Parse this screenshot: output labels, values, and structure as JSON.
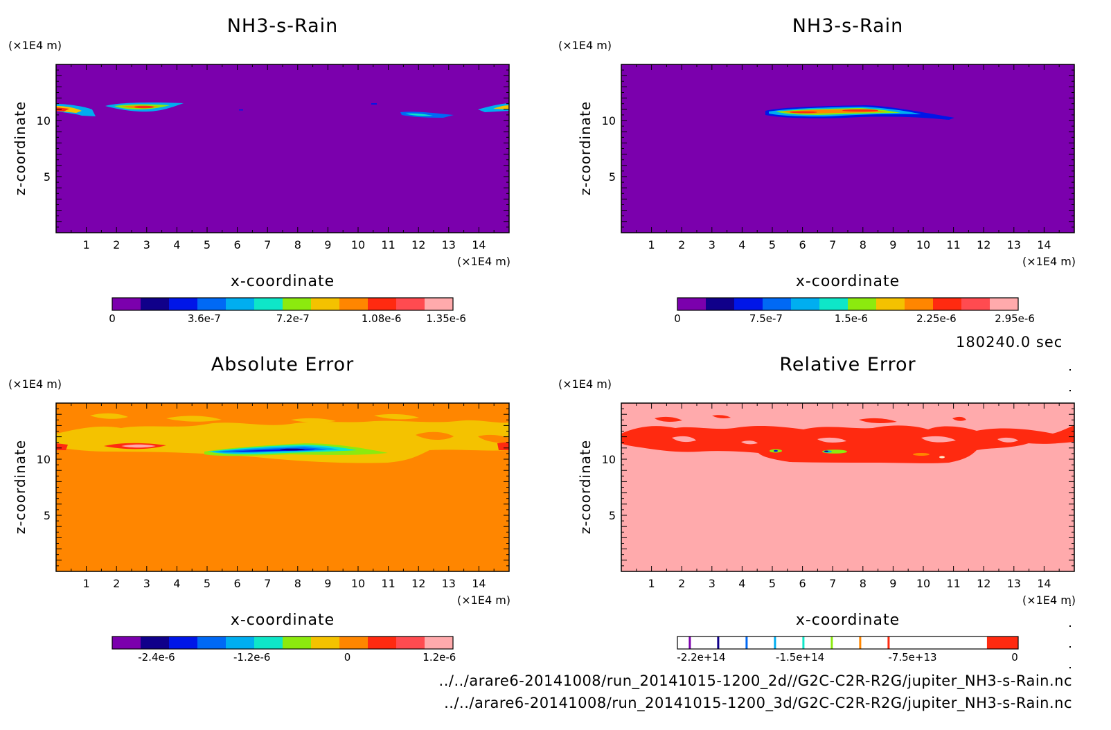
{
  "timestamp": "180240.0 sec",
  "file_paths": [
    "../../arare6-20141008/run_20141015-1200_2d//G2C-C2R-R2G/jupiter_NH3-s-Rain.nc",
    "../../arare6-20141008/run_20141015-1200_3d/G2C-C2R-R2G/jupiter_NH3-s-Rain.nc"
  ],
  "colors": {
    "palette": [
      "#7b00ad",
      "#10008a",
      "#0016e8",
      "#0069f5",
      "#00aef0",
      "#0ee6c8",
      "#8cea0e",
      "#f4c200",
      "#ff8600",
      "#ff2a10",
      "#ff4b50",
      "#ffaaac"
    ]
  },
  "chart_data": [
    {
      "type": "heatmap",
      "title": "NH3-s-Rain",
      "xlabel": "x-coordinate",
      "ylabel": "z-coordinate",
      "x_unit": "(×1E4 m)",
      "y_unit": "(×1E4 m)",
      "xlim": [
        0,
        15
      ],
      "ylim": [
        0,
        15
      ],
      "x_ticks": [
        "1",
        "2",
        "3",
        "4",
        "5",
        "6",
        "7",
        "8",
        "9",
        "10",
        "11",
        "12",
        "13",
        "14"
      ],
      "y_ticks": [
        "5",
        "10"
      ],
      "background_level": 0,
      "features": [
        {
          "x_range": [
            0,
            1.4
          ],
          "z": 11.0,
          "peak": 1.08e-06
        },
        {
          "x_range": [
            1.7,
            4.3
          ],
          "z": 11.2,
          "peak": 1.35e-06
        },
        {
          "x_range": [
            11.5,
            13.0
          ],
          "z": 10.4,
          "peak": 6e-07
        },
        {
          "x_range": [
            14.0,
            15.0
          ],
          "z": 11.0,
          "peak": 1.08e-06
        }
      ],
      "colorbar": {
        "levels": 12,
        "tick_labels": [
          "0",
          "3.6e-7",
          "7.2e-7",
          "1.08e-6",
          "1.35e-6"
        ]
      }
    },
    {
      "type": "heatmap",
      "title": "NH3-s-Rain",
      "xlabel": "x-coordinate",
      "ylabel": "z-coordinate",
      "x_unit": "(×1E4 m)",
      "y_unit": "(×1E4 m)",
      "xlim": [
        0,
        15
      ],
      "ylim": [
        0,
        15
      ],
      "x_ticks": [
        "1",
        "2",
        "3",
        "4",
        "5",
        "6",
        "7",
        "8",
        "9",
        "10",
        "11",
        "12",
        "13",
        "14"
      ],
      "y_ticks": [
        "5",
        "10"
      ],
      "background_level": 0,
      "features": [
        {
          "x_range": [
            4.9,
            11.2
          ],
          "z": 10.8,
          "peak": 2.95e-06
        }
      ],
      "colorbar": {
        "levels": 12,
        "tick_labels": [
          "0",
          "7.5e-7",
          "1.5e-6",
          "2.25e-6",
          "2.95e-6"
        ]
      }
    },
    {
      "type": "heatmap",
      "title": "Absolute Error",
      "xlabel": "x-coordinate",
      "ylabel": "z-coordinate",
      "x_unit": "(×1E4 m)",
      "y_unit": "(×1E4 m)",
      "xlim": [
        0,
        15
      ],
      "ylim": [
        0,
        15
      ],
      "x_ticks": [
        "1",
        "2",
        "3",
        "4",
        "5",
        "6",
        "7",
        "8",
        "9",
        "10",
        "11",
        "12",
        "13",
        "14"
      ],
      "y_ticks": [
        "5",
        "10"
      ],
      "background_level": 0,
      "features": [
        {
          "x_range": [
            5.0,
            10.5
          ],
          "z": 10.9,
          "peak": -2.9e-06
        },
        {
          "x_range": [
            1.5,
            4.0
          ],
          "z": 11.2,
          "peak": 1.2e-06
        }
      ],
      "colorbar": {
        "levels": 12,
        "tick_labels": [
          "-2.4e-6",
          "-1.2e-6",
          "0",
          "1.2e-6"
        ]
      }
    },
    {
      "type": "heatmap",
      "title": "Relative Error",
      "xlabel": "x-coordinate",
      "ylabel": "z-coordinate",
      "x_unit": "(×1E4 m)",
      "y_unit": "(×1E4 m)",
      "xlim": [
        0,
        15
      ],
      "ylim": [
        0,
        15
      ],
      "x_ticks": [
        "1",
        "2",
        "3",
        "4",
        "5",
        "6",
        "7",
        "8",
        "9",
        "10",
        "11",
        "12",
        "13",
        "14"
      ],
      "y_ticks": [
        "5",
        "10"
      ],
      "background_level": 0,
      "features": [
        {
          "x_range": [
            0,
            15
          ],
          "z": 11.5,
          "value": -15000000000000.0
        },
        {
          "x_range": [
            5.0,
            12.0
          ],
          "z": 10.5,
          "value": -220000000000000.0
        }
      ],
      "colorbar": {
        "levels": 12,
        "tick_labels": [
          "-2.2e+14",
          "-1.5e+14",
          "-7.5e+13",
          "0"
        ]
      }
    }
  ]
}
